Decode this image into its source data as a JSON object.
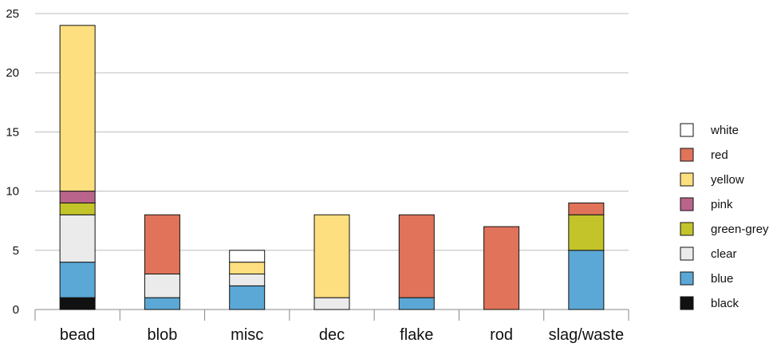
{
  "chart_data": {
    "type": "bar",
    "stacked": true,
    "categories": [
      "bead",
      "blob",
      "misc",
      "dec",
      "flake",
      "rod",
      "slag/waste"
    ],
    "ylim": [
      0,
      25
    ],
    "yticks": [
      0,
      5,
      10,
      15,
      20,
      25
    ],
    "grid": true,
    "legend_placement": "right",
    "series": [
      {
        "name": "black",
        "color": "#111111",
        "values": [
          1,
          0,
          0,
          0,
          0,
          0,
          0
        ]
      },
      {
        "name": "blue",
        "color": "#5ba8d6",
        "values": [
          3,
          1,
          2,
          0,
          1,
          0,
          5
        ]
      },
      {
        "name": "clear",
        "color": "#ebebeb",
        "values": [
          4,
          2,
          1,
          1,
          0,
          0,
          0
        ]
      },
      {
        "name": "green-grey",
        "color": "#c2c42a",
        "values": [
          1,
          0,
          0,
          0,
          0,
          0,
          3
        ]
      },
      {
        "name": "pink",
        "color": "#b9658b",
        "values": [
          1,
          0,
          0,
          0,
          0,
          0,
          0
        ]
      },
      {
        "name": "yellow",
        "color": "#fddf7f",
        "values": [
          14,
          0,
          1,
          7,
          0,
          0,
          0
        ]
      },
      {
        "name": "red",
        "color": "#e0735a",
        "values": [
          0,
          5,
          0,
          0,
          7,
          7,
          1
        ]
      },
      {
        "name": "white",
        "color": "#ffffff",
        "values": [
          0,
          0,
          1,
          0,
          0,
          0,
          0
        ]
      }
    ],
    "legend_order": [
      "white",
      "red",
      "yellow",
      "pink",
      "green-grey",
      "clear",
      "blue",
      "black"
    ]
  }
}
